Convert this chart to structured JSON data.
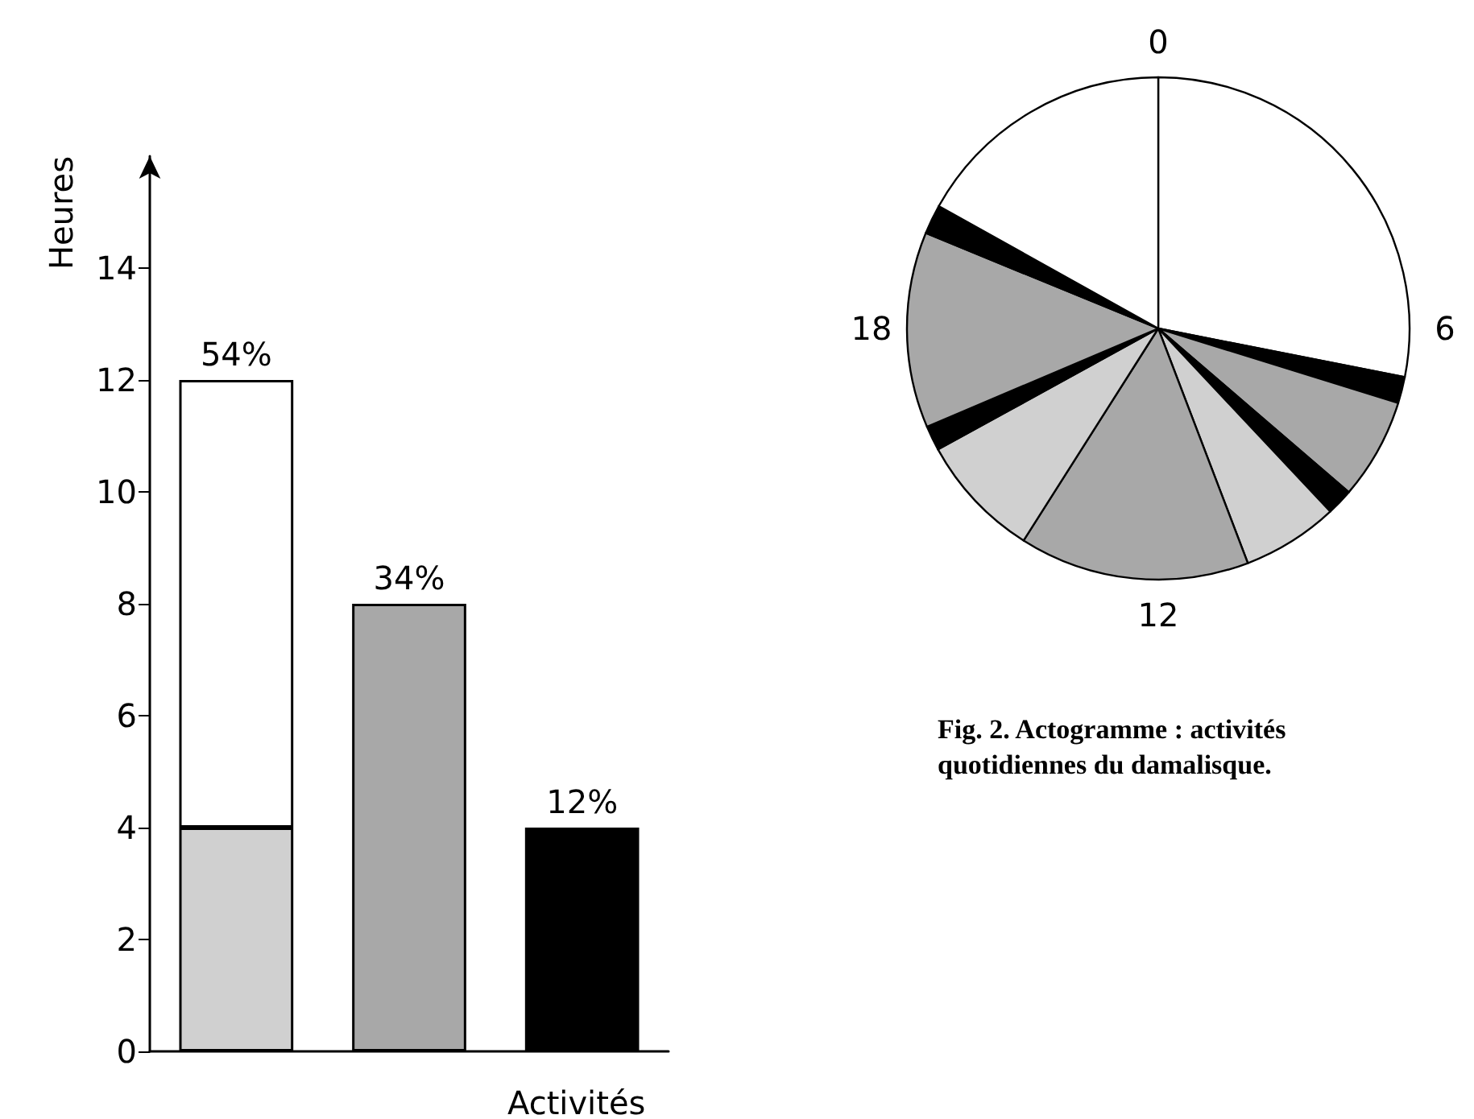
{
  "chart_data": [
    {
      "type": "bar",
      "ylabel": "Heures",
      "xlabel": "Activités",
      "categories": [
        null,
        null,
        null
      ],
      "stacked": true,
      "series": [
        {
          "color": "#d0d0d0",
          "values": [
            4,
            null,
            null
          ]
        },
        {
          "color": "#ffffff",
          "values": [
            8,
            null,
            null
          ]
        },
        {
          "color": "#a8a8a8",
          "values": [
            null,
            8,
            null
          ]
        },
        {
          "color": "#000000",
          "values": [
            null,
            null,
            4
          ]
        }
      ],
      "annotations": [
        "54%",
        "34%",
        "12%"
      ],
      "ylim": [
        0,
        16
      ],
      "yticks": [
        0,
        2,
        4,
        6,
        8,
        10,
        12,
        14
      ],
      "grid": false
    },
    {
      "type": "pie",
      "categories": [
        null,
        null,
        null,
        null,
        null,
        null,
        null,
        null,
        null,
        null,
        null
      ],
      "values": [
        28.1,
        1.7,
        6.5,
        1.7,
        6.2,
        14.8,
        8.0,
        1.6,
        12.6,
        1.9,
        16.9
      ],
      "colors": [
        "#ffffff",
        "#000000",
        "#a8a8a8",
        "#000000",
        "#d0d0d0",
        "#a8a8a8",
        "#d0d0d0",
        "#000000",
        "#a8a8a8",
        "#000000",
        "#ffffff"
      ],
      "annotations": [
        "0",
        "6",
        "12",
        "18",
        "Fig. 2. Actogramme : activités quotidiennes du damalisque."
      ]
    }
  ]
}
